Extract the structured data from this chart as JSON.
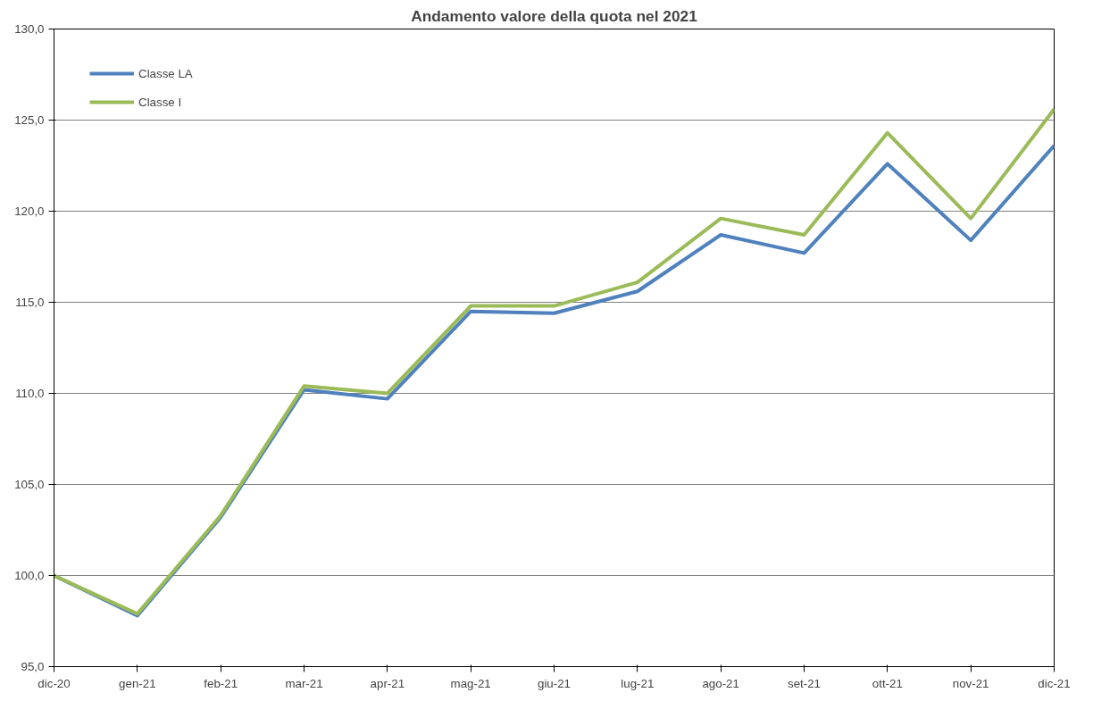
{
  "chart_data": {
    "type": "line",
    "title": "Andamento valore della quota nel 2021",
    "categories": [
      "dic-20",
      "gen-21",
      "feb-21",
      "mar-21",
      "apr-21",
      "mag-21",
      "giu-21",
      "lug-21",
      "ago-21",
      "set-21",
      "ott-21",
      "nov-21",
      "dic-21"
    ],
    "series": [
      {
        "name": "Classe LA",
        "color": "#4f81bd",
        "values": [
          100.0,
          97.8,
          103.2,
          110.2,
          109.7,
          114.5,
          114.4,
          115.6,
          118.7,
          117.7,
          122.6,
          118.4,
          123.6
        ]
      },
      {
        "name": "Classe I",
        "color": "#9bbb59",
        "values": [
          100.0,
          97.9,
          103.3,
          110.4,
          110.0,
          114.8,
          114.8,
          116.1,
          119.6,
          118.7,
          124.3,
          119.6,
          125.6
        ]
      }
    ],
    "ylim": [
      95,
      130
    ],
    "yticks": [
      {
        "value": 95,
        "label": "95,0"
      },
      {
        "value": 100,
        "label": "100,0"
      },
      {
        "value": 105,
        "label": "105,0"
      },
      {
        "value": 110,
        "label": "110,0"
      },
      {
        "value": 115,
        "label": "115,0"
      },
      {
        "value": 120,
        "label": "120,0"
      },
      {
        "value": 125,
        "label": "125,0"
      },
      {
        "value": 130,
        "label": "130,0"
      }
    ],
    "grid": "y",
    "legend": "top left",
    "marker": "none",
    "line_style": "solid"
  }
}
